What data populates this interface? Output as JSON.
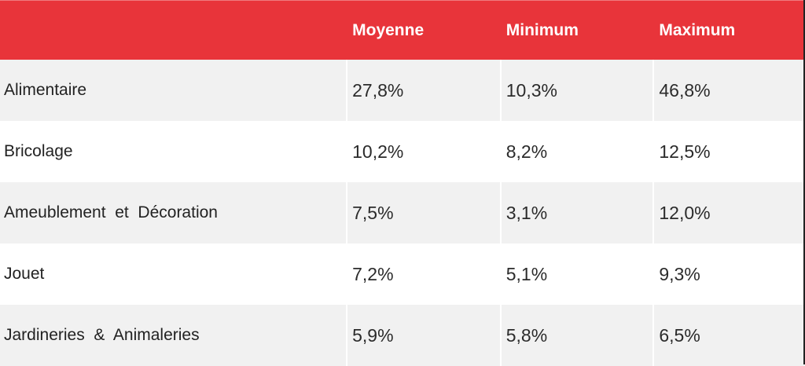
{
  "table": {
    "headers": [
      "",
      "Moyenne",
      "Minimum",
      "Maximum"
    ],
    "rows": [
      {
        "label": "Alimentaire",
        "moyenne": "27,8%",
        "minimum": "10,3%",
        "maximum": "46,8%"
      },
      {
        "label": "Bricolage",
        "moyenne": "10,2%",
        "minimum": "8,2%",
        "maximum": "12,5%"
      },
      {
        "label": "Ameublement  et  Décoration",
        "moyenne": "7,5%",
        "minimum": "3,1%",
        "maximum": "12,0%"
      },
      {
        "label": "Jouet",
        "moyenne": "7,2%",
        "minimum": "5,1%",
        "maximum": "9,3%"
      },
      {
        "label": "Jardineries  &  Animaleries",
        "moyenne": "5,9%",
        "minimum": "5,8%",
        "maximum": "6,5%"
      }
    ]
  },
  "colors": {
    "header_bg": "#e8343a",
    "header_text": "#ffffff",
    "row_shade": "#f1f1f1",
    "row_plain": "#ffffff"
  }
}
